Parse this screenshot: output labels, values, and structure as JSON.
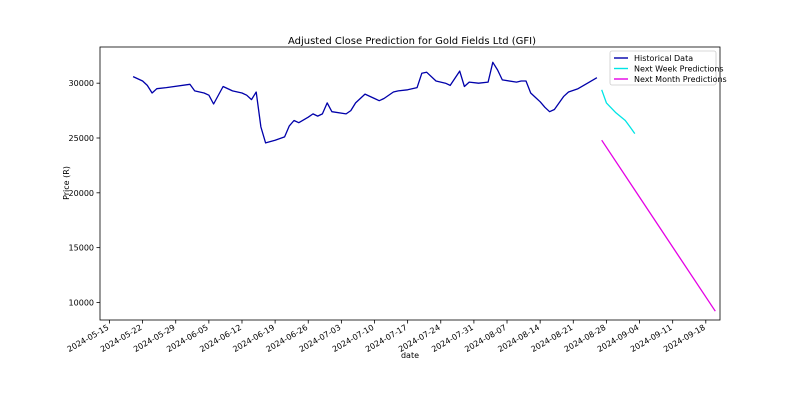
{
  "chart_data": {
    "type": "line",
    "title": "Adjusted Close Prediction for Gold Fields Ltd (GFI)",
    "xlabel": "date",
    "ylabel": "Price (R)",
    "xlim": [
      "2024-05-13",
      "2024-09-21"
    ],
    "ylim": [
      8400,
      33300
    ],
    "x_ticks": [
      "2024-05-15",
      "2024-05-22",
      "2024-05-29",
      "2024-06-05",
      "2024-06-12",
      "2024-06-19",
      "2024-06-26",
      "2024-07-03",
      "2024-07-10",
      "2024-07-17",
      "2024-07-24",
      "2024-07-31",
      "2024-08-07",
      "2024-08-14",
      "2024-08-21",
      "2024-08-28",
      "2024-09-04",
      "2024-09-11",
      "2024-09-18"
    ],
    "y_ticks": [
      10000,
      15000,
      20000,
      25000,
      30000
    ],
    "grid": false,
    "legend_position": "top-right",
    "series": [
      {
        "name": "Historical Data",
        "color": "#0000aa",
        "points": [
          [
            "2024-05-20",
            30600
          ],
          [
            "2024-05-22",
            30200
          ],
          [
            "2024-05-23",
            29800
          ],
          [
            "2024-05-24",
            29100
          ],
          [
            "2024-05-25",
            29500
          ],
          [
            "2024-05-27",
            29600
          ],
          [
            "2024-06-01",
            29900
          ],
          [
            "2024-06-02",
            29300
          ],
          [
            "2024-06-04",
            29100
          ],
          [
            "2024-06-05",
            28900
          ],
          [
            "2024-06-06",
            28100
          ],
          [
            "2024-06-08",
            29700
          ],
          [
            "2024-06-10",
            29300
          ],
          [
            "2024-06-12",
            29100
          ],
          [
            "2024-06-13",
            28900
          ],
          [
            "2024-06-14",
            28500
          ],
          [
            "2024-06-15",
            29200
          ],
          [
            "2024-06-16",
            26000
          ],
          [
            "2024-06-17",
            24550
          ],
          [
            "2024-06-19",
            24800
          ],
          [
            "2024-06-21",
            25100
          ],
          [
            "2024-06-22",
            26100
          ],
          [
            "2024-06-23",
            26600
          ],
          [
            "2024-06-24",
            26400
          ],
          [
            "2024-06-26",
            26900
          ],
          [
            "2024-06-27",
            27200
          ],
          [
            "2024-06-28",
            27000
          ],
          [
            "2024-06-29",
            27200
          ],
          [
            "2024-06-30",
            28200
          ],
          [
            "2024-07-01",
            27400
          ],
          [
            "2024-07-04",
            27200
          ],
          [
            "2024-07-05",
            27500
          ],
          [
            "2024-07-06",
            28200
          ],
          [
            "2024-07-08",
            29000
          ],
          [
            "2024-07-10",
            28600
          ],
          [
            "2024-07-11",
            28400
          ],
          [
            "2024-07-12",
            28600
          ],
          [
            "2024-07-14",
            29200
          ],
          [
            "2024-07-15",
            29300
          ],
          [
            "2024-07-17",
            29400
          ],
          [
            "2024-07-19",
            29600
          ],
          [
            "2024-07-20",
            30900
          ],
          [
            "2024-07-21",
            31000
          ],
          [
            "2024-07-23",
            30200
          ],
          [
            "2024-07-25",
            30000
          ],
          [
            "2024-07-26",
            29800
          ],
          [
            "2024-07-28",
            31100
          ],
          [
            "2024-07-29",
            29700
          ],
          [
            "2024-07-30",
            30100
          ],
          [
            "2024-08-01",
            30000
          ],
          [
            "2024-08-03",
            30100
          ],
          [
            "2024-08-04",
            31900
          ],
          [
            "2024-08-05",
            31200
          ],
          [
            "2024-08-06",
            30300
          ],
          [
            "2024-08-09",
            30100
          ],
          [
            "2024-08-10",
            30200
          ],
          [
            "2024-08-11",
            30200
          ],
          [
            "2024-08-12",
            29100
          ],
          [
            "2024-08-13",
            28700
          ],
          [
            "2024-08-14",
            28300
          ],
          [
            "2024-08-15",
            27800
          ],
          [
            "2024-08-16",
            27400
          ],
          [
            "2024-08-17",
            27600
          ],
          [
            "2024-08-18",
            28200
          ],
          [
            "2024-08-19",
            28800
          ],
          [
            "2024-08-20",
            29200
          ],
          [
            "2024-08-22",
            29500
          ],
          [
            "2024-08-24",
            30000
          ],
          [
            "2024-08-26",
            30500
          ]
        ]
      },
      {
        "name": "Next Week Predictions",
        "color": "#00e5e5",
        "points": [
          [
            "2024-08-27",
            29400
          ],
          [
            "2024-08-28",
            28200
          ],
          [
            "2024-08-30",
            27300
          ],
          [
            "2024-09-01",
            26600
          ],
          [
            "2024-09-02",
            26000
          ],
          [
            "2024-09-03",
            25400
          ]
        ]
      },
      {
        "name": "Next Month Predictions",
        "color": "#e500e5",
        "points": [
          [
            "2024-08-27",
            24800
          ],
          [
            "2024-09-20",
            9200
          ]
        ]
      }
    ]
  }
}
